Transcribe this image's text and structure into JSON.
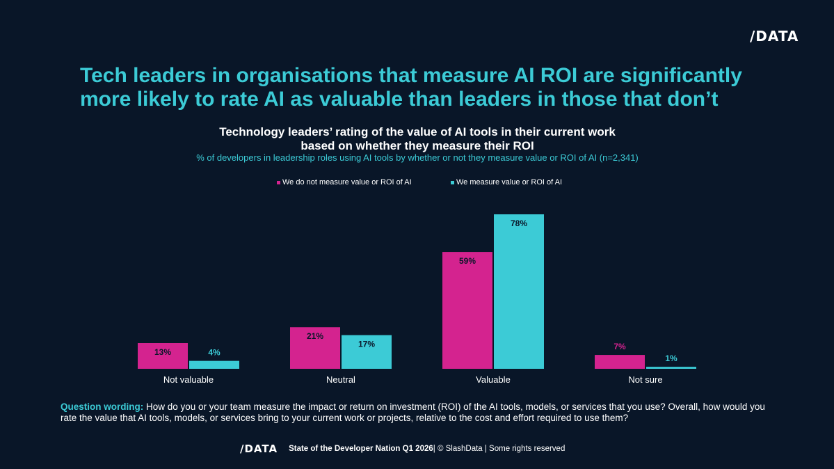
{
  "brand": {
    "logo_text": "/DATA"
  },
  "headline": "Tech leaders in organisations that measure AI ROI are significantly more likely to rate AI as valuable than leaders in those that don’t",
  "colors": {
    "series1": "#d4238f",
    "series2": "#3ccbd6",
    "accent": "#3ccbd6",
    "background": "#091628"
  },
  "chart_data": {
    "type": "bar",
    "title_line1": "Technology leaders’ rating of the value of AI tools in their current work",
    "title_line2": "based on whether they measure their ROI",
    "subtitle": "% of developers in leadership roles using AI tools by whether or not they measure value or ROI of AI (n=2,341)",
    "categories": [
      "Not valuable",
      "Neutral",
      "Valuable",
      "Not sure"
    ],
    "series": [
      {
        "name": "We do not measure value or ROI of AI",
        "values": [
          13,
          21,
          59,
          7
        ],
        "labels": [
          "13%",
          "21%",
          "59%",
          "7%"
        ]
      },
      {
        "name": "We measure value or ROI of AI",
        "values": [
          4,
          17,
          78,
          1
        ],
        "labels": [
          "4%",
          "17%",
          "78%",
          "1%"
        ]
      }
    ],
    "ylim": [
      0,
      78
    ],
    "grid": false,
    "legend_position": "top-center"
  },
  "footnote": {
    "label": "Question wording:",
    "text": " How do you or your team measure the impact or return on investment (ROI) of the AI tools, models, or services that you use? Overall, how would you rate the value that AI tools, models, or services bring to your current work or projects, relative to the cost and effort required to use them?"
  },
  "footer": {
    "logo_text": "/DATA",
    "report": "State of the Developer Nation Q1 2026",
    "rights": " | © SlashData | Some rights reserved"
  }
}
